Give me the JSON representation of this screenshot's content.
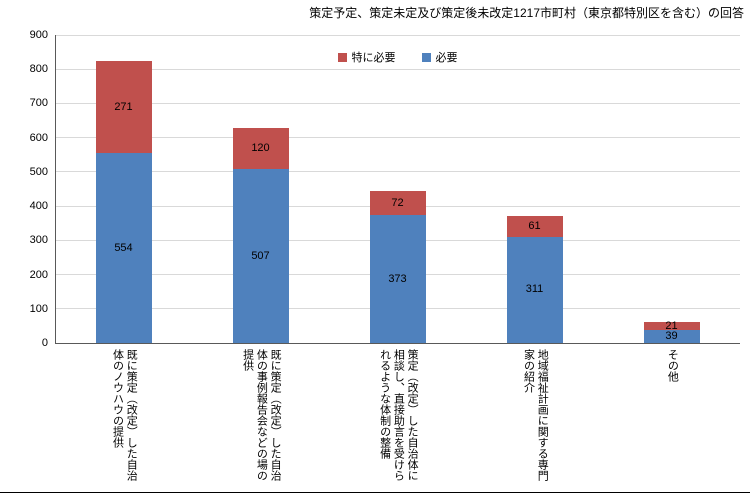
{
  "title": "策定予定、策定未定及び策定後未改定1217市町村（東京都特別区を含む）の回答",
  "legend": [
    {
      "label": "特に必要",
      "color": "#C0504D"
    },
    {
      "label": "必要",
      "color": "#4F81BD"
    }
  ],
  "axis": {
    "grid_color": "#D9D9D9",
    "axis_color": "#595959",
    "y_tick_labels": [
      "0",
      "100",
      "200",
      "300",
      "400",
      "500",
      "600",
      "700",
      "800",
      "900"
    ]
  },
  "chart_data": {
    "type": "bar",
    "stacked": true,
    "title": "策定予定、策定未定及び策定後未改定1217市町村（東京都特別区を含む）の回答",
    "categories": [
      "既に策定（改定）した自治体のノウハウの提供",
      "既に策定（改定）した自治体の事例報告会などの場の提供",
      "策定（改定）した自治体に相談し、直接助言を受けられるような体制の整備",
      "地域福祉計画に関する専門家の紹介",
      "その他"
    ],
    "series": [
      {
        "name": "必要",
        "color": "#4F81BD",
        "values": [
          554,
          507,
          373,
          311,
          39
        ]
      },
      {
        "name": "特に必要",
        "color": "#C0504D",
        "values": [
          271,
          120,
          72,
          61,
          21
        ]
      }
    ],
    "ylim": [
      0,
      900
    ],
    "ytick_interval": 100,
    "grid": true,
    "legend_position": "top-center-inside",
    "value_labels": true,
    "xlabel": "",
    "ylabel": ""
  }
}
